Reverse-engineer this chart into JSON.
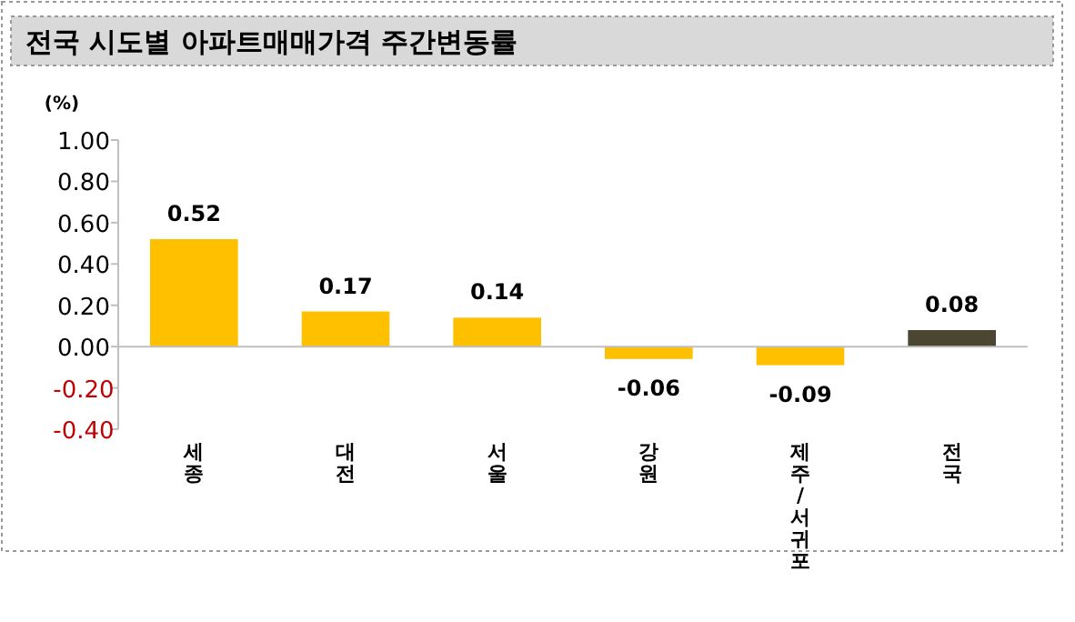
{
  "chart_data": {
    "type": "bar",
    "title": "전국 시도별 아파트매매가격 주간변동률",
    "ylabel": "(%)",
    "categories": [
      "세종",
      "대전",
      "서울",
      "강원",
      "제주/서귀포",
      "전국"
    ],
    "values": [
      0.52,
      0.17,
      0.14,
      -0.06,
      -0.09,
      0.08
    ],
    "colors": [
      "#ffc000",
      "#ffc000",
      "#ffc000",
      "#ffc000",
      "#ffc000",
      "#4b4631"
    ],
    "ylim": [
      -0.4,
      1.0
    ],
    "yticks": [
      {
        "value": -0.4,
        "label": "-0.40"
      },
      {
        "value": -0.2,
        "label": "-0.20"
      },
      {
        "value": 0,
        "label": "0.00"
      },
      {
        "value": 0.2,
        "label": "0.20"
      },
      {
        "value": 0.4,
        "label": "0.40"
      },
      {
        "value": 0.6,
        "label": "0.60"
      },
      {
        "value": 0.8,
        "label": "0.80"
      },
      {
        "value": 1.0,
        "label": "1.00"
      }
    ],
    "data_labels": true
  }
}
